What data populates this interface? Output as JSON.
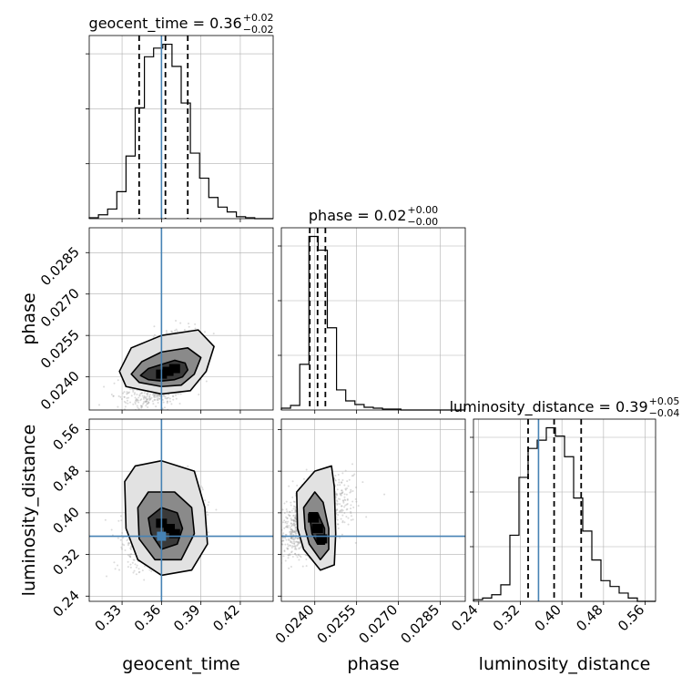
{
  "chart_data": {
    "type": "corner",
    "parameters": [
      "geocent_time",
      "phase",
      "luminosity_distance"
    ],
    "truths": {
      "geocent_time": 0.36,
      "phase": null,
      "luminosity_distance": 0.355
    },
    "diagonal": [
      {
        "parameter": "geocent_time",
        "title_main": "geocent_time = 0.36",
        "title_sup": "+0.02",
        "title_sub": "−0.02",
        "xlim": [
          0.305,
          0.445
        ],
        "quantiles": [
          0.343,
          0.363,
          0.38
        ],
        "bin_edges": [
          0.305,
          0.312,
          0.319,
          0.326,
          0.333,
          0.34,
          0.347,
          0.354,
          0.361,
          0.368,
          0.375,
          0.382,
          0.389,
          0.396,
          0.403,
          0.41,
          0.417,
          0.424,
          0.431,
          0.438,
          0.445
        ],
        "counts": [
          1,
          4,
          10,
          28,
          65,
          115,
          168,
          177,
          181,
          158,
          120,
          68,
          42,
          22,
          12,
          7,
          2,
          1,
          0,
          0
        ]
      },
      {
        "parameter": "phase",
        "title_main": "phase = 0.02",
        "title_sup": "+0.00",
        "title_sub": "−0.00",
        "xlim": [
          0.0228,
          0.0294
        ],
        "quantiles": [
          0.02382,
          0.0241,
          0.02438
        ],
        "bin_edges": [
          0.0228,
          0.02313,
          0.02346,
          0.02379,
          0.02412,
          0.02445,
          0.02478,
          0.02511,
          0.02544,
          0.02577,
          0.0261,
          0.02643,
          0.02676,
          0.02709,
          0.02742,
          0.02775,
          0.02808,
          0.02841,
          0.02874,
          0.02907,
          0.0294
        ],
        "counts": [
          2,
          5,
          50,
          190,
          175,
          90,
          22,
          10,
          6,
          3,
          2,
          1,
          1,
          0,
          0,
          0,
          0,
          0,
          0,
          0
        ]
      },
      {
        "parameter": "luminosity_distance",
        "title_main": "luminosity_distance = 0.39",
        "title_sup": "+0.05",
        "title_sub": "−0.04",
        "xlim": [
          0.23,
          0.58
        ],
        "quantiles": [
          0.335,
          0.385,
          0.437
        ],
        "bin_edges": [
          0.23,
          0.2475,
          0.265,
          0.2825,
          0.3,
          0.3175,
          0.335,
          0.3525,
          0.37,
          0.3875,
          0.405,
          0.4225,
          0.44,
          0.4575,
          0.475,
          0.4925,
          0.51,
          0.5275,
          0.545,
          0.5625,
          0.58
        ],
        "counts": [
          2,
          4,
          8,
          20,
          80,
          150,
          185,
          195,
          210,
          200,
          175,
          125,
          85,
          50,
          25,
          18,
          10,
          4,
          0,
          0
        ]
      }
    ],
    "panels_2d": [
      {
        "x_param": "geocent_time",
        "y_param": "phase",
        "xlim": [
          0.305,
          0.445
        ],
        "ylim": [
          0.0228,
          0.0294
        ],
        "centers": [
          [
            0.36,
            0.0241
          ],
          [
            0.365,
            0.0242
          ],
          [
            0.37,
            0.0243
          ]
        ],
        "contours": [
          [
            [
              0.344,
              0.02405
            ],
            [
              0.35,
              0.0239
            ],
            [
              0.36,
              0.02385
            ],
            [
              0.37,
              0.0239
            ],
            [
              0.376,
              0.024
            ],
            [
              0.38,
              0.02425
            ],
            [
              0.378,
              0.0245
            ],
            [
              0.37,
              0.0246
            ],
            [
              0.36,
              0.02445
            ],
            [
              0.35,
              0.0243
            ]
          ],
          [
            [
              0.337,
              0.0241
            ],
            [
              0.343,
              0.0238
            ],
            [
              0.36,
              0.02365
            ],
            [
              0.375,
              0.0237
            ],
            [
              0.385,
              0.0241
            ],
            [
              0.39,
              0.0247
            ],
            [
              0.38,
              0.02505
            ],
            [
              0.36,
              0.0249
            ],
            [
              0.345,
              0.02455
            ]
          ],
          [
            [
              0.328,
              0.0242
            ],
            [
              0.333,
              0.02365
            ],
            [
              0.36,
              0.02338
            ],
            [
              0.382,
              0.0235
            ],
            [
              0.394,
              0.0242
            ],
            [
              0.4,
              0.0251
            ],
            [
              0.388,
              0.0257
            ],
            [
              0.36,
              0.0255
            ],
            [
              0.337,
              0.02505
            ]
          ]
        ]
      },
      {
        "x_param": "geocent_time",
        "y_param": "luminosity_distance",
        "xlim": [
          0.305,
          0.445
        ],
        "ylim": [
          0.23,
          0.58
        ],
        "centers": [
          [
            0.36,
            0.38
          ],
          [
            0.366,
            0.37
          ],
          [
            0.37,
            0.36
          ]
        ],
        "contours": [
          [
            [
              0.35,
              0.39
            ],
            [
              0.352,
              0.36
            ],
            [
              0.36,
              0.33
            ],
            [
              0.372,
              0.34
            ],
            [
              0.376,
              0.37
            ],
            [
              0.372,
              0.4
            ],
            [
              0.36,
              0.41
            ]
          ],
          [
            [
              0.342,
              0.41
            ],
            [
              0.343,
              0.35
            ],
            [
              0.355,
              0.31
            ],
            [
              0.375,
              0.31
            ],
            [
              0.385,
              0.36
            ],
            [
              0.383,
              0.41
            ],
            [
              0.37,
              0.44
            ],
            [
              0.35,
              0.44
            ]
          ],
          [
            [
              0.332,
              0.46
            ],
            [
              0.333,
              0.37
            ],
            [
              0.342,
              0.31
            ],
            [
              0.36,
              0.28
            ],
            [
              0.383,
              0.29
            ],
            [
              0.395,
              0.34
            ],
            [
              0.393,
              0.41
            ],
            [
              0.385,
              0.48
            ],
            [
              0.36,
              0.5
            ],
            [
              0.34,
              0.49
            ]
          ]
        ]
      },
      {
        "x_param": "phase",
        "y_param": "luminosity_distance",
        "xlim": [
          0.0228,
          0.0294
        ],
        "ylim": [
          0.23,
          0.58
        ],
        "centers": [
          [
            0.02395,
            0.39
          ],
          [
            0.0241,
            0.37
          ],
          [
            0.02425,
            0.35
          ]
        ],
        "contours": [
          [
            [
              0.0238,
              0.4
            ],
            [
              0.0239,
              0.36
            ],
            [
              0.0241,
              0.34
            ],
            [
              0.02435,
              0.34
            ],
            [
              0.02435,
              0.37
            ],
            [
              0.0241,
              0.4
            ]
          ],
          [
            [
              0.0236,
              0.41
            ],
            [
              0.02365,
              0.37
            ],
            [
              0.0238,
              0.34
            ],
            [
              0.0242,
              0.31
            ],
            [
              0.0245,
              0.33
            ],
            [
              0.0245,
              0.37
            ],
            [
              0.0243,
              0.42
            ],
            [
              0.024,
              0.44
            ]
          ],
          [
            [
              0.02335,
              0.44
            ],
            [
              0.02338,
              0.37
            ],
            [
              0.0236,
              0.33
            ],
            [
              0.0242,
              0.29
            ],
            [
              0.0247,
              0.3
            ],
            [
              0.02475,
              0.36
            ],
            [
              0.0247,
              0.45
            ],
            [
              0.0246,
              0.49
            ],
            [
              0.024,
              0.48
            ]
          ]
        ]
      }
    ],
    "ticks": {
      "geocent_time": {
        "values": [
          0.33,
          0.36,
          0.39,
          0.42
        ],
        "labels": [
          "0.33",
          "0.36",
          "0.39",
          "0.42"
        ]
      },
      "phase": {
        "values": [
          0.024,
          0.0255,
          0.027,
          0.0285
        ],
        "labels": [
          "0.0240",
          "0.0255",
          "0.0270",
          "0.0285"
        ]
      },
      "luminosity_distance": {
        "values": [
          0.24,
          0.32,
          0.4,
          0.48,
          0.56
        ],
        "labels": [
          "0.24",
          "0.32",
          "0.40",
          "0.48",
          "0.56"
        ]
      }
    },
    "axis_labels": {
      "x": [
        "geocent_time",
        "phase",
        "luminosity_distance"
      ],
      "y": [
        "phase",
        "luminosity_distance"
      ]
    },
    "grid": true,
    "colors": {
      "truth_line": "#4682b4",
      "hist_line": "#000000",
      "scatter": "#999999",
      "grid": "#b0b0b0"
    }
  }
}
